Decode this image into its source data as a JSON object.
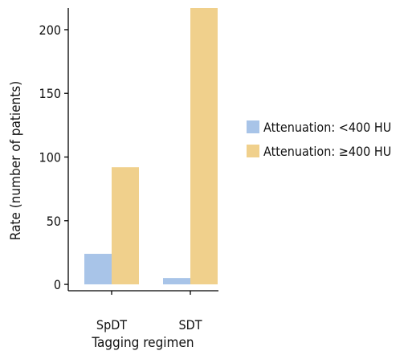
{
  "chart_data": {
    "type": "bar",
    "categories": [
      "SpDT",
      "SDT"
    ],
    "series": [
      {
        "name": "Attenuation: <400 HU",
        "values": [
          24,
          5
        ],
        "color": "#a8c4e8"
      },
      {
        "name": "Attenuation: ≥400 HU",
        "values": [
          92,
          217
        ],
        "color": "#f0d08c"
      }
    ],
    "xlabel": "Tagging regimen",
    "ylabel": "Rate (number of patients)",
    "ylim": [
      -5,
      217
    ],
    "yticks": [
      0,
      50,
      100,
      150,
      200
    ],
    "legend_position": "right",
    "grid": false
  }
}
